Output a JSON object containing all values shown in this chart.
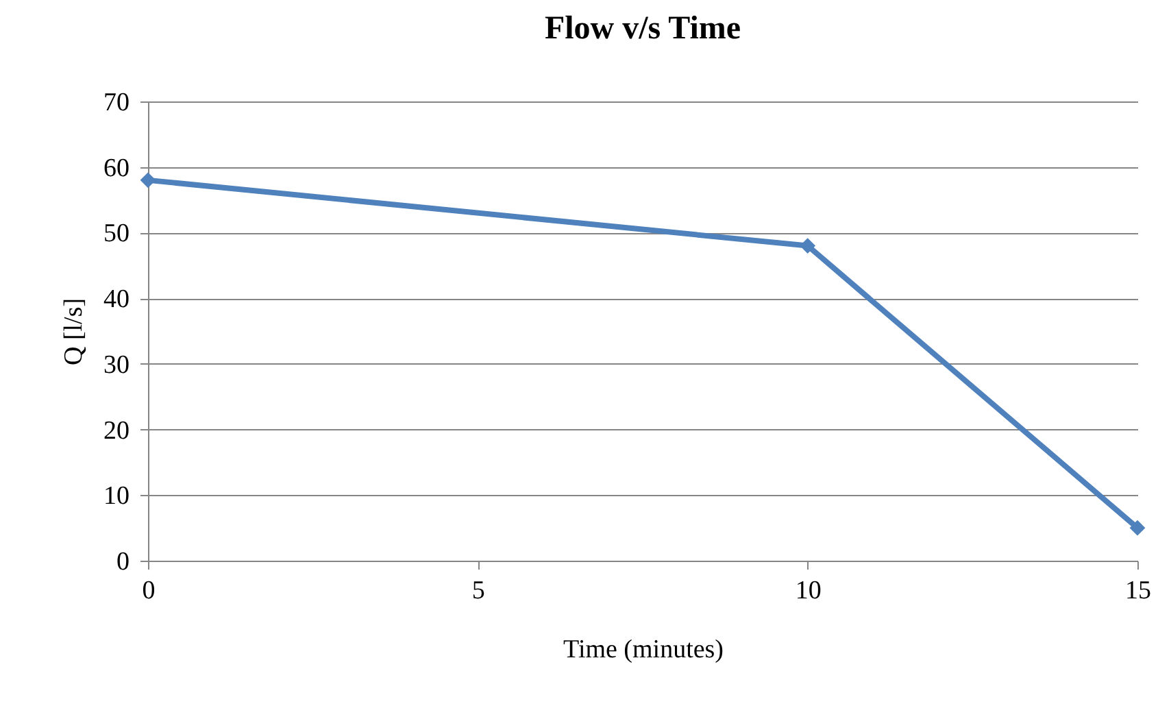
{
  "chart_data": {
    "type": "line",
    "title": "Flow v/s Time",
    "xlabel": "Time (minutes)",
    "ylabel": "Q [l/s]",
    "x": [
      0,
      10,
      15
    ],
    "series": [
      {
        "color": "#4f81bd",
        "values": [
          58,
          48,
          5
        ]
      }
    ],
    "xlim": [
      0,
      15
    ],
    "xticks": [
      0,
      5,
      10,
      15
    ],
    "ylim": [
      0,
      70
    ],
    "yticks": [
      0,
      10,
      20,
      30,
      40,
      50,
      60,
      70
    ],
    "grid": "y",
    "marker": "diamond",
    "line_style": "solid"
  }
}
